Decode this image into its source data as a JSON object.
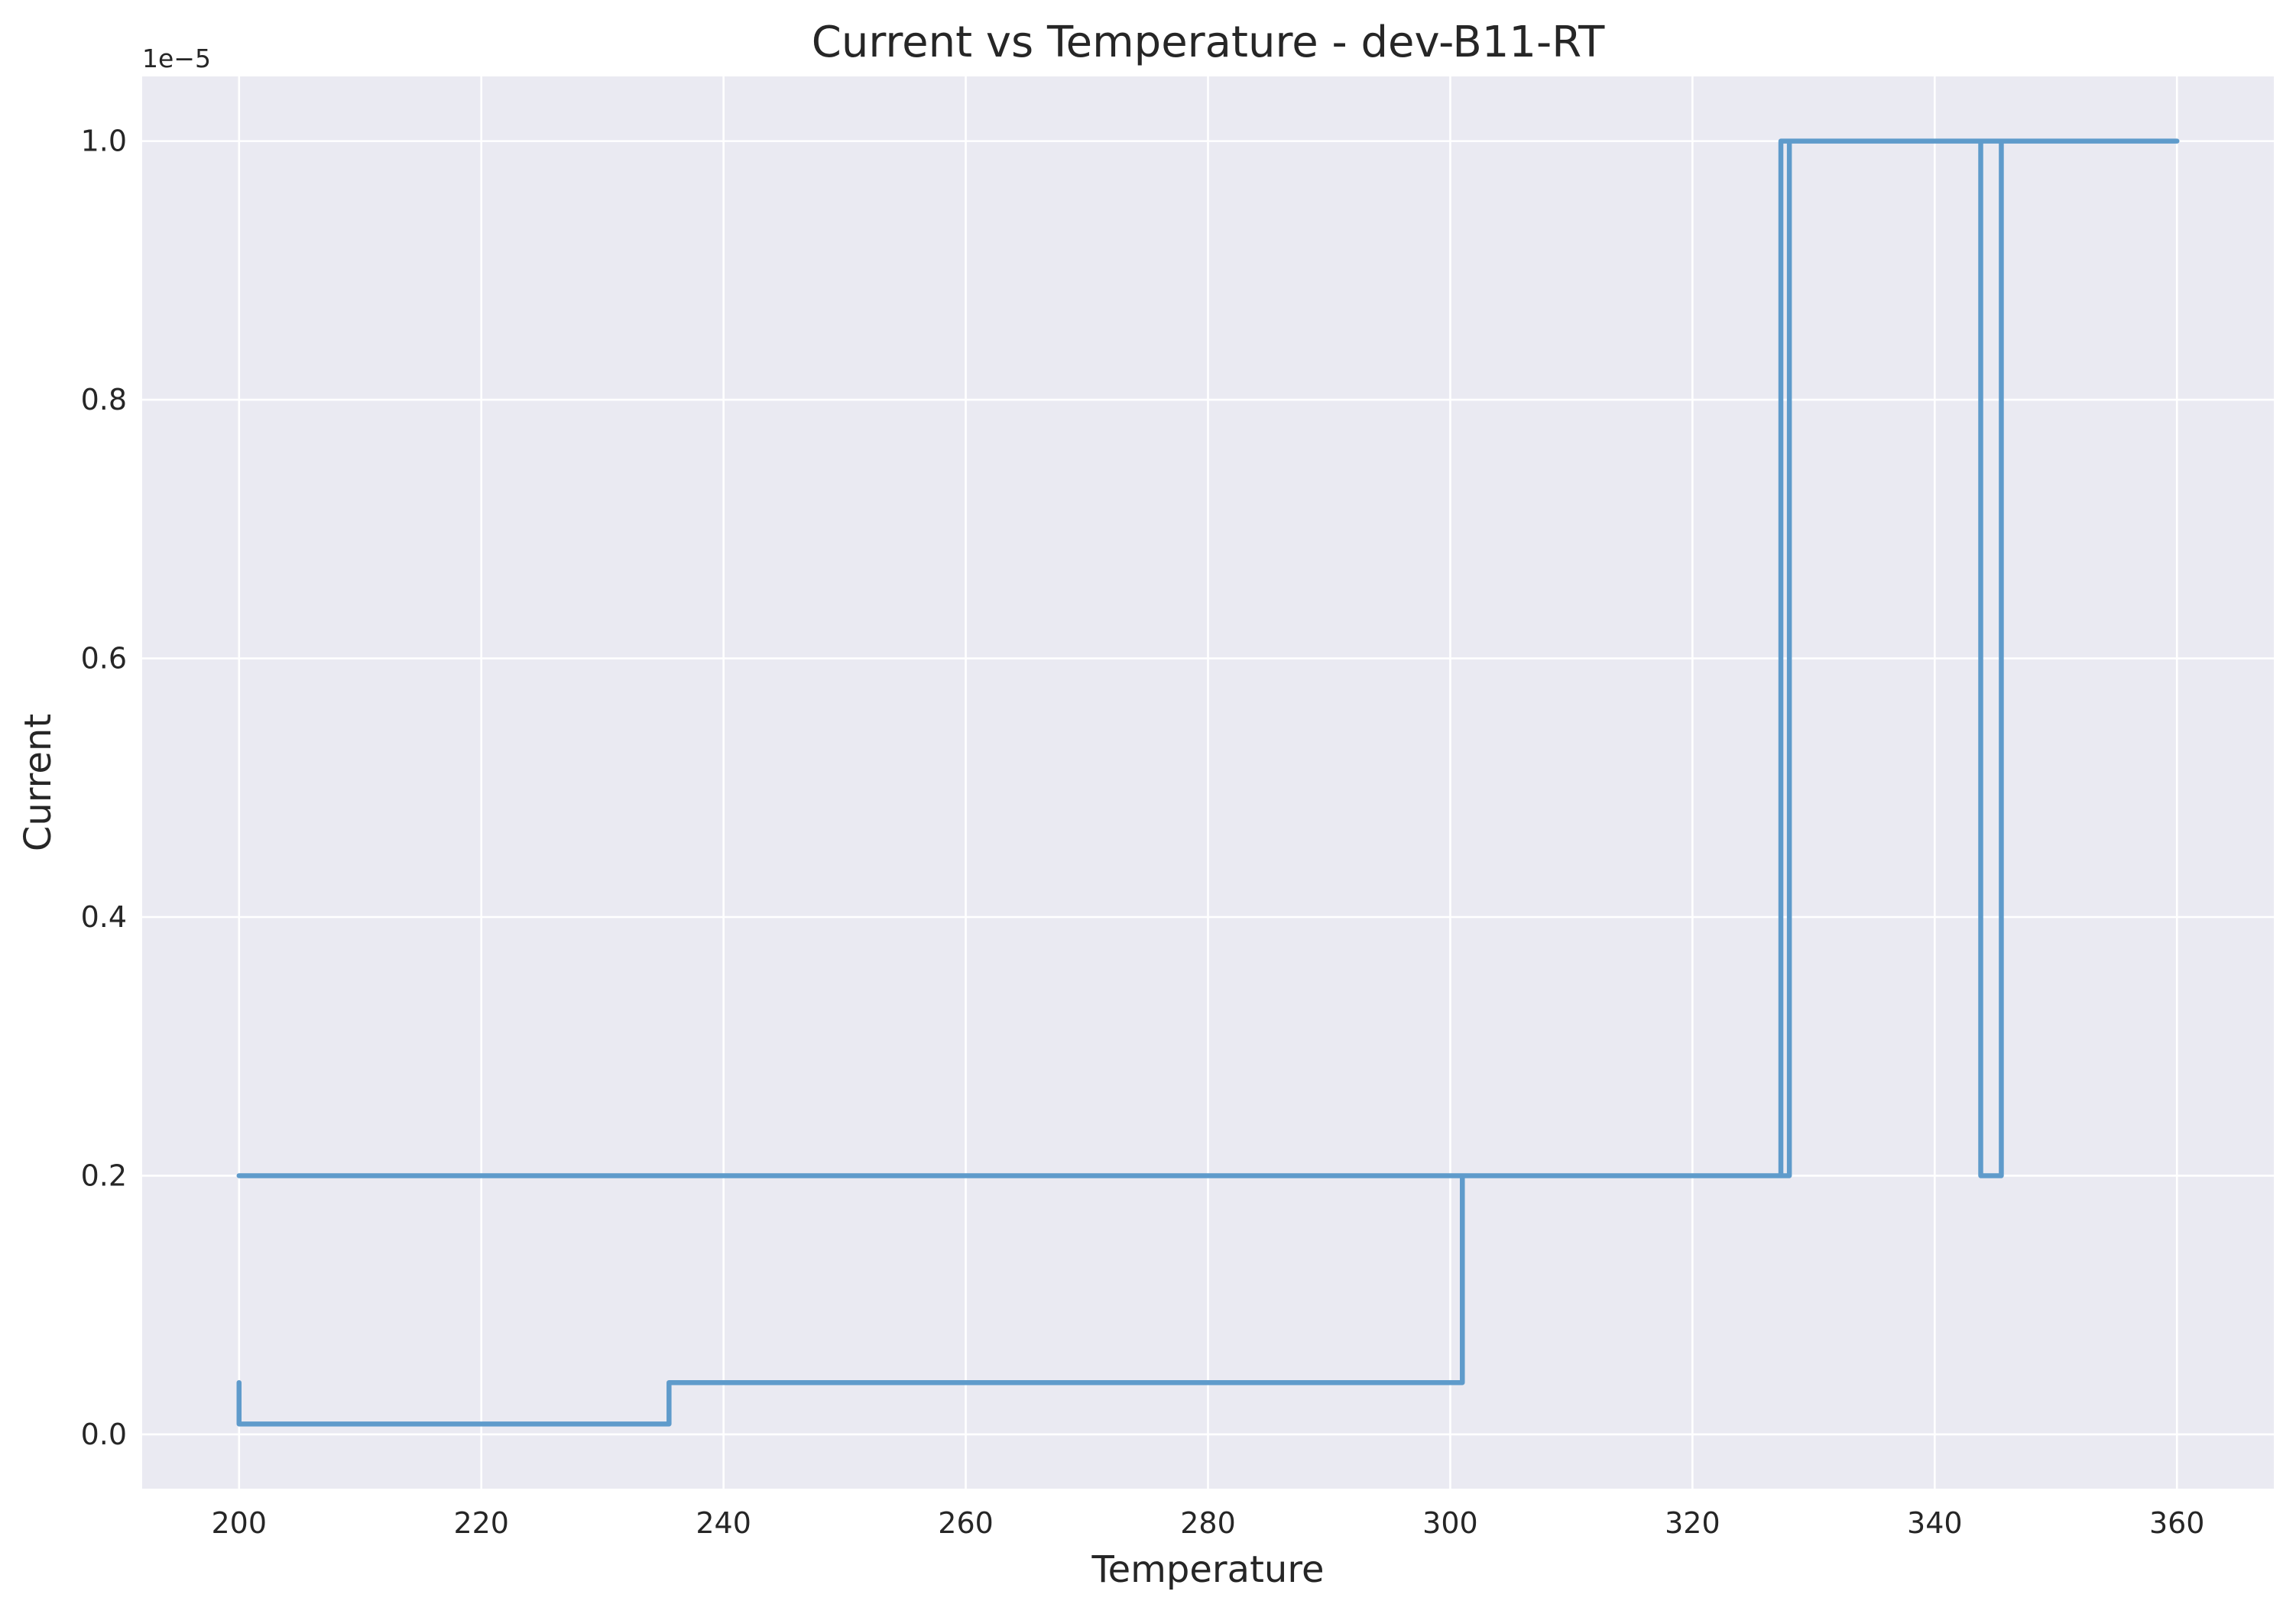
{
  "chart_data": {
    "type": "line",
    "title": "Current vs Temperature - dev-B11-RT",
    "xlabel": "Temperature",
    "ylabel": "Current",
    "y_offset_label": "1e−5",
    "xlim": [
      192,
      368
    ],
    "ylim": [
      -0.042,
      1.05
    ],
    "x_ticks": [
      200,
      220,
      240,
      260,
      280,
      300,
      320,
      340,
      360
    ],
    "x_tick_labels": [
      "200",
      "220",
      "240",
      "260",
      "280",
      "300",
      "320",
      "340",
      "360"
    ],
    "y_ticks": [
      0.0,
      0.2,
      0.4,
      0.6,
      0.8,
      1.0
    ],
    "y_tick_labels": [
      "0.0",
      "0.2",
      "0.4",
      "0.6",
      "0.8",
      "1.0"
    ],
    "grid": true,
    "background_color": "#eaeaf2",
    "grid_color": "#ffffff",
    "line_color": "#5f9bcb",
    "series": [
      {
        "x": [
          200,
          200,
          235.5,
          235.5,
          301,
          301,
          327.3,
          327.3,
          360,
          345.5,
          345.5,
          343.8,
          343.8,
          328,
          328,
          200
        ],
        "y": [
          0.04,
          0.008,
          0.008,
          0.04,
          0.04,
          0.2,
          0.2,
          1.0,
          1.0,
          1.0,
          0.2,
          0.2,
          1.0,
          1.0,
          0.2,
          0.2
        ]
      }
    ]
  }
}
